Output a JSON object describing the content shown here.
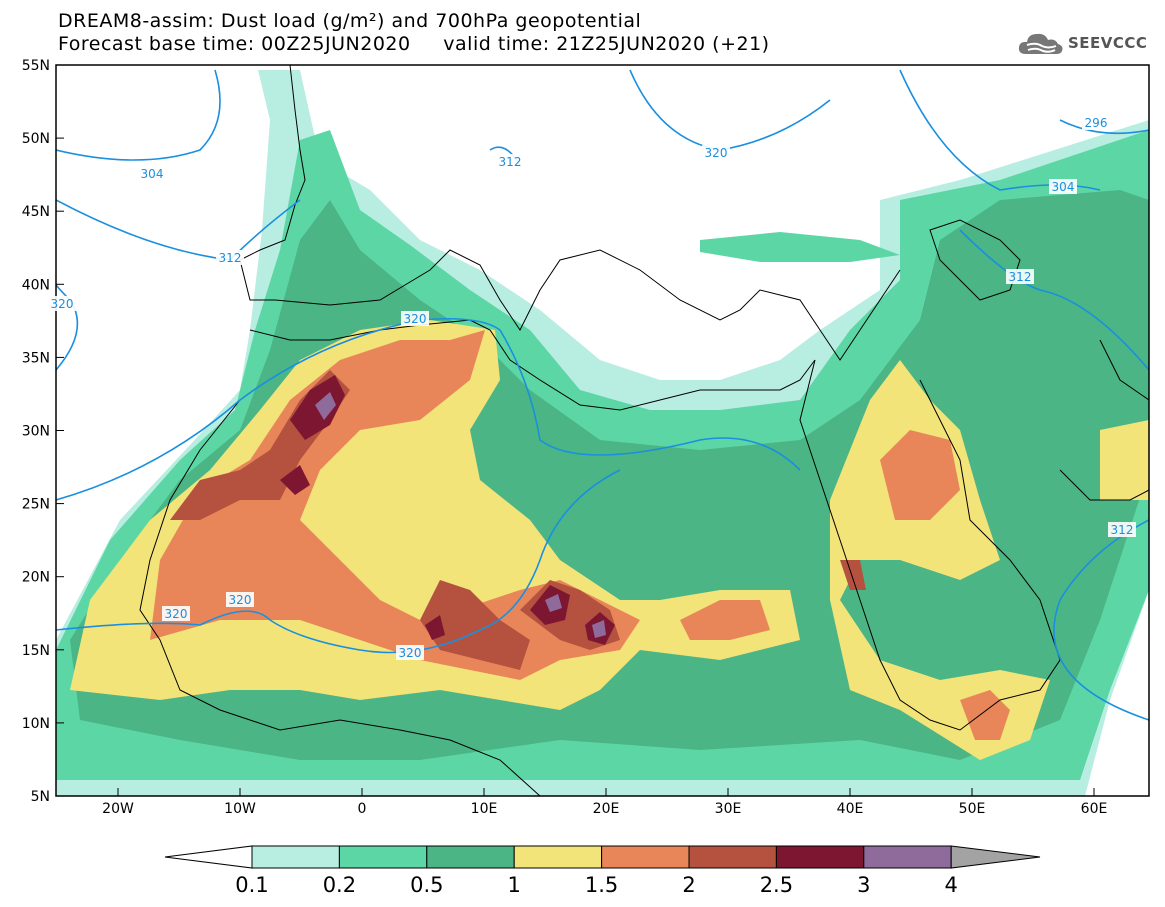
{
  "header": {
    "title_line1": "DREAM8-assim: Dust load (g/m²) and 700hPa geopotential",
    "title_line2": "Forecast base time: 00Z25JUN2020     valid time: 21Z25JUN2020 (+21)"
  },
  "logo": {
    "text": "SEEVCCC",
    "icon": "cloud-icon"
  },
  "map": {
    "lon_ticks": [
      "20W",
      "10W",
      "0",
      "10E",
      "20E",
      "30E",
      "40E",
      "50E",
      "60E"
    ],
    "lat_ticks": [
      "55N",
      "50N",
      "45N",
      "40N",
      "35N",
      "30N",
      "25N",
      "20N",
      "15N",
      "10N",
      "5N"
    ],
    "contour_labels": [
      "304",
      "312",
      "312",
      "320",
      "320",
      "320",
      "320",
      "320",
      "304",
      "312",
      "312",
      "296",
      "320"
    ]
  },
  "colorbar": {
    "ticks": [
      "0.1",
      "0.2",
      "0.5",
      "1",
      "1.5",
      "2",
      "2.5",
      "3",
      "4"
    ],
    "colors": [
      "#ffffff",
      "#b8ede2",
      "#5dd6a6",
      "#4bb585",
      "#f3e47a",
      "#e8865a",
      "#b4523f",
      "#7c1631",
      "#8f6b9c",
      "#a3a3a3"
    ]
  }
}
